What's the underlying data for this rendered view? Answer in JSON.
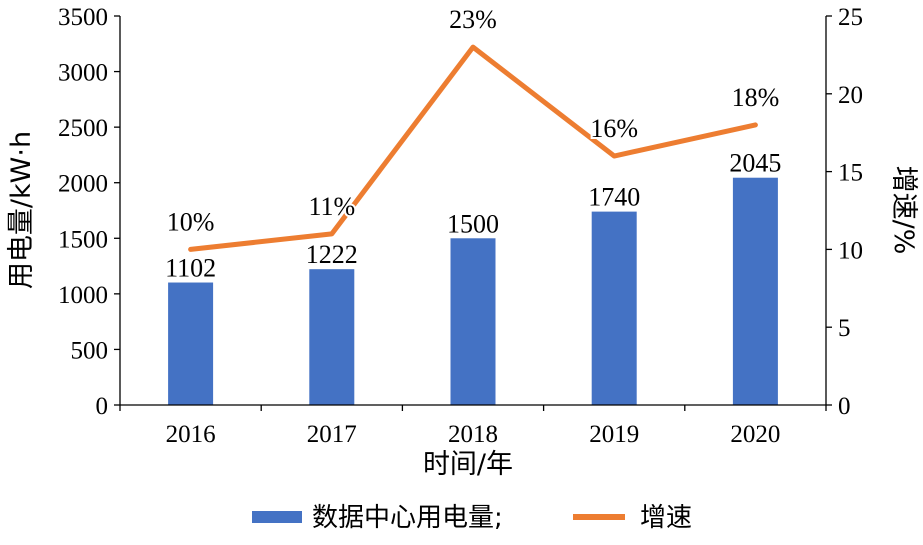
{
  "chart_data": {
    "type": "bar",
    "categories": [
      "2016",
      "2017",
      "2018",
      "2019",
      "2020"
    ],
    "series": [
      {
        "name": "数据中心用电量",
        "type": "bar",
        "axis": "left",
        "values": [
          1102,
          1222,
          1500,
          1740,
          2045
        ],
        "labels": [
          "1102",
          "1222",
          "1500",
          "1740",
          "2045"
        ],
        "color": "#4472C4"
      },
      {
        "name": "增速",
        "type": "line",
        "axis": "right",
        "values": [
          10,
          11,
          23,
          16,
          18
        ],
        "labels": [
          "10%",
          "11%",
          "23%",
          "16%",
          "18%"
        ],
        "color": "#ED7D31"
      }
    ],
    "xlabel": "时间/年",
    "ylabel": "用电量/kW·h",
    "y2label": "增速/%",
    "ylim": [
      0,
      3500
    ],
    "y2lim": [
      0,
      25
    ],
    "yticks": [
      0,
      500,
      1000,
      1500,
      2000,
      2500,
      3000,
      3500
    ],
    "y2ticks": [
      0,
      5,
      10,
      15,
      20,
      25
    ],
    "grid": false,
    "legend": {
      "position": "bottom",
      "entries": [
        "数据中心用电量;",
        "增速"
      ]
    }
  }
}
